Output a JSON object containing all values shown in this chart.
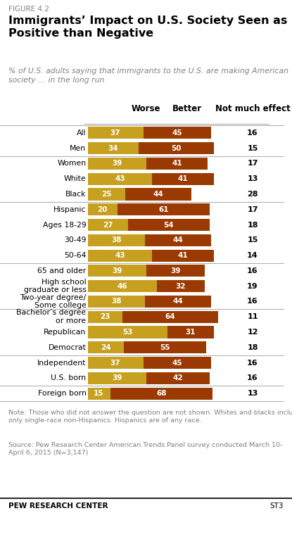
{
  "figure_label": "FIGURE 4.2",
  "title": "Immigrants’ Impact on U.S. Society Seen as More\nPositive than Negative",
  "subtitle": "% of U.S. adults saying that immigrants to the U.S. are making American\nsociety … in the long run",
  "col_headers": [
    "Worse",
    "Better",
    "Not much effect"
  ],
  "categories": [
    "All",
    "Men",
    "Women",
    "White",
    "Black",
    "Hispanic",
    "Ages 18-29",
    "30-49",
    "50-64",
    "65 and older",
    "High school\ngraduate or less",
    "Two-year degree/\nSome college",
    "Bachelor’s degree\nor more",
    "Republican",
    "Democrat",
    "Independent",
    "U.S. born",
    "Foreign born"
  ],
  "worse": [
    37,
    34,
    39,
    43,
    25,
    20,
    27,
    38,
    43,
    39,
    46,
    38,
    23,
    53,
    24,
    37,
    39,
    15
  ],
  "better": [
    45,
    50,
    41,
    41,
    44,
    61,
    54,
    44,
    41,
    39,
    32,
    44,
    64,
    31,
    55,
    45,
    42,
    68
  ],
  "not_much": [
    16,
    15,
    17,
    13,
    28,
    17,
    18,
    15,
    14,
    16,
    19,
    16,
    11,
    12,
    18,
    16,
    16,
    13
  ],
  "worse_color": "#C8A020",
  "better_color": "#9B3A00",
  "separator_after": [
    0,
    2,
    5,
    9,
    12,
    15,
    17
  ],
  "note": "Note: Those who did not answer the question are not shown. Whites and blacks include\nonly single-race non-Hispanics. Hispanics are of any race.",
  "source": "Source: Pew Research Center American Trends Panel survey conducted March 10-\nApril 6, 2015 (N=3,147)",
  "footer": "PEW RESEARCH CENTER",
  "footer_right": "ST3",
  "background_color": "#ffffff",
  "subtitle_color": "#808080",
  "note_color": "#808080",
  "figure_label_color": "#808080"
}
